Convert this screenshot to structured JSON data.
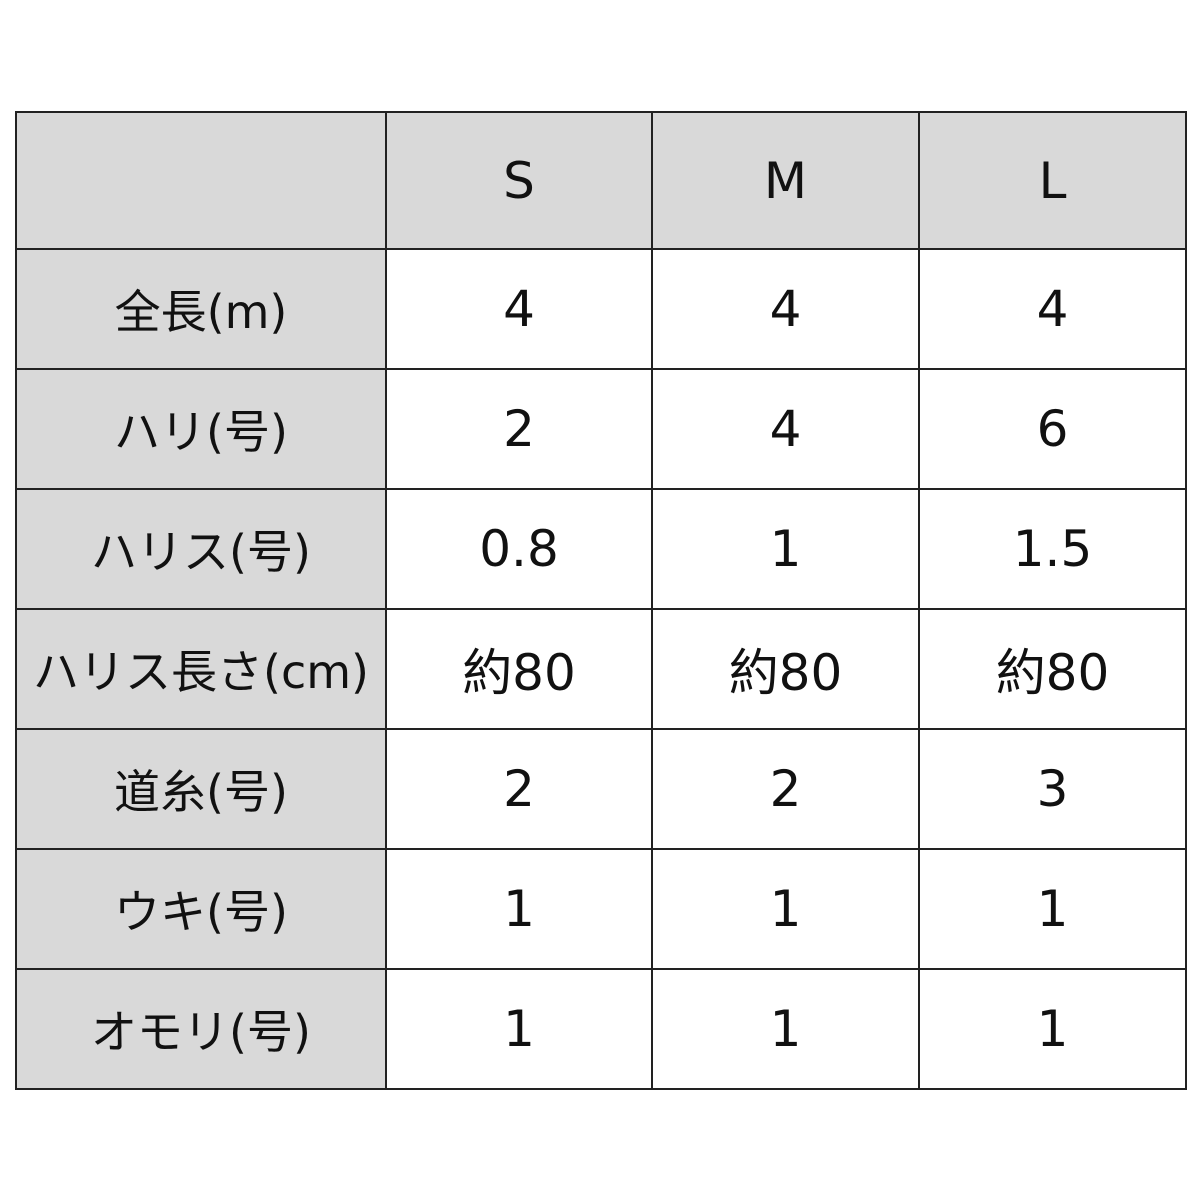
{
  "table": {
    "header": [
      "",
      "S",
      "M",
      "L"
    ],
    "rows": [
      {
        "label": "全長(m)",
        "values": [
          "4",
          "4",
          "4"
        ]
      },
      {
        "label": "ハリ(号)",
        "values": [
          "2",
          "4",
          "6"
        ]
      },
      {
        "label": "ハリス(号)",
        "values": [
          "0.8",
          "1",
          "1.5"
        ]
      },
      {
        "label": "ハリス長さ(cm)",
        "values": [
          "約80",
          "約80",
          "約80"
        ]
      },
      {
        "label": "道糸(号)",
        "values": [
          "2",
          "2",
          "3"
        ]
      },
      {
        "label": "ウキ(号)",
        "values": [
          "1",
          "1",
          "1"
        ]
      },
      {
        "label": "オモリ(号)",
        "values": [
          "1",
          "1",
          "1"
        ]
      }
    ],
    "colors": {
      "header_bg": "#d9d9d9",
      "border": "#222222"
    }
  }
}
